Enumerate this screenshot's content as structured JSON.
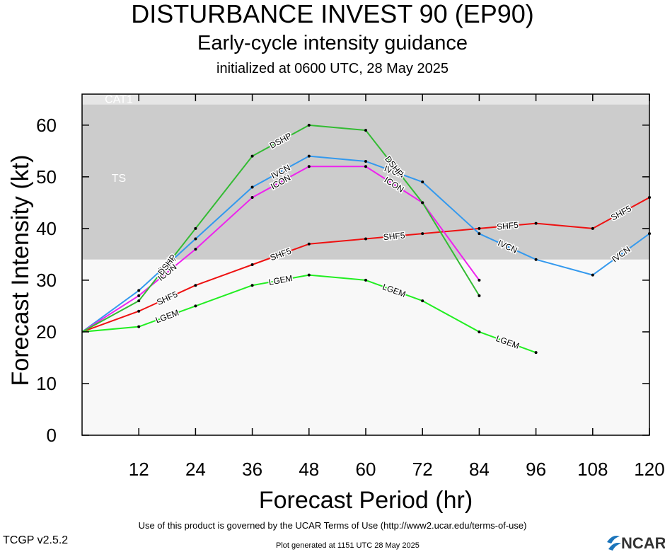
{
  "header": {
    "title": "DISTURBANCE INVEST 90 (EP90)",
    "subtitle": "Early-cycle intensity guidance",
    "init_line": "initialized at 0600 UTC, 28 May 2025"
  },
  "footer": {
    "terms": "Use of this product is governed by the UCAR Terms of Use (http://www2.ucar.edu/terms-of-use)",
    "version": "TCGP v2.5.2",
    "generated": "Plot generated at 1151 UTC   28 May 2025",
    "logo_text": "NCAR"
  },
  "colors": {
    "band_ts": "#cccccc",
    "band_cat1": "#e6e6e6",
    "band_below": "#f8f8f8",
    "SHF5": "#ee1111",
    "LGEM": "#22ee22",
    "IVCN": "#3399ee",
    "ICON": "#ee22ee",
    "DSHP": "#33bb33"
  },
  "chart_data": {
    "type": "line",
    "xlabel": "Forecast Period (hr)",
    "ylabel": "Forecast Intensity (kt)",
    "xlim": [
      0,
      120
    ],
    "ylim": [
      0,
      66
    ],
    "xticks": [
      12,
      24,
      36,
      48,
      60,
      72,
      84,
      96,
      108,
      120
    ],
    "yticks": [
      0,
      10,
      20,
      30,
      40,
      50,
      60
    ],
    "grid": false,
    "bands": [
      {
        "label": "",
        "from": 0,
        "to": 34
      },
      {
        "label": "TS",
        "from": 34,
        "to": 64
      },
      {
        "label": "CAT1",
        "from": 64,
        "to": 66
      }
    ],
    "series": [
      {
        "name": "SHF5",
        "x": [
          0,
          12,
          24,
          36,
          48,
          60,
          72,
          84,
          96,
          108,
          120
        ],
        "values": [
          20,
          24,
          29,
          33,
          37,
          38,
          39,
          40,
          41,
          40,
          46
        ]
      },
      {
        "name": "LGEM",
        "x": [
          0,
          12,
          24,
          36,
          48,
          60,
          72,
          84,
          96
        ],
        "values": [
          20,
          21,
          25,
          29,
          31,
          30,
          26,
          20,
          16
        ]
      },
      {
        "name": "IVCN",
        "x": [
          0,
          12,
          24,
          36,
          48,
          60,
          72,
          84,
          96,
          108,
          120
        ],
        "values": [
          20,
          28,
          38,
          48,
          54,
          53,
          49,
          39,
          34,
          31,
          39
        ]
      },
      {
        "name": "ICON",
        "x": [
          0,
          12,
          24,
          36,
          48,
          60,
          72,
          84
        ],
        "values": [
          20,
          27,
          36,
          46,
          52,
          52,
          45,
          30
        ]
      },
      {
        "name": "DSHP",
        "x": [
          0,
          12,
          24,
          36,
          48,
          60,
          72,
          84
        ],
        "values": [
          20,
          26,
          40,
          54,
          60,
          59,
          45,
          27
        ]
      }
    ]
  }
}
